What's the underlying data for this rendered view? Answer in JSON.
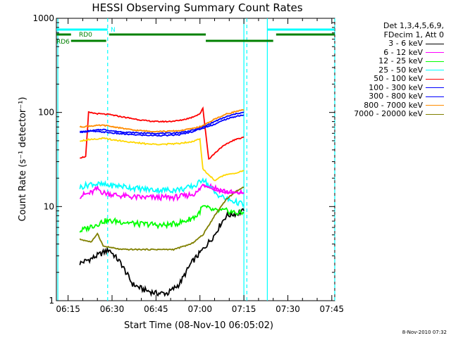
{
  "chart_data": {
    "type": "line",
    "title": "HESSI Observing Summary Count Rates",
    "xlabel": "Start Time (08-Nov-10 06:05:02)",
    "ylabel": "Count Rate (s⁻¹ detector⁻¹)",
    "yscale": "log",
    "ylim": [
      1,
      1000
    ],
    "xlim_minutes": [
      6.0,
      101.0
    ],
    "x_ticks": [
      {
        "min": 10,
        "label": "06:15"
      },
      {
        "min": 25,
        "label": "06:30"
      },
      {
        "min": 40,
        "label": "06:45"
      },
      {
        "min": 55,
        "label": "07:00"
      },
      {
        "min": 70,
        "label": "07:15"
      },
      {
        "min": 85,
        "label": "07:30"
      },
      {
        "min": 100,
        "label": "07:45"
      }
    ],
    "y_ticks": [
      {
        "value": 1,
        "label": "1"
      },
      {
        "value": 10,
        "label": "10"
      },
      {
        "value": 100,
        "label": "100"
      },
      {
        "value": 1000,
        "label": "1000"
      }
    ],
    "legend_header": [
      "Det 1,3,4,5,6,9,",
      "FDecim 1, Att 0"
    ],
    "series": [
      {
        "name": "3 - 6 keV",
        "color": "#000000",
        "points": [
          [
            14,
            2.5
          ],
          [
            18,
            2.8
          ],
          [
            24,
            3.5
          ],
          [
            28,
            2.5
          ],
          [
            32,
            1.5
          ],
          [
            36,
            1.3
          ],
          [
            40,
            1.2
          ],
          [
            44,
            1.2
          ],
          [
            48,
            1.5
          ],
          [
            52,
            2.5
          ],
          [
            56,
            3.5
          ],
          [
            60,
            5
          ],
          [
            62,
            6.5
          ],
          [
            64,
            8
          ],
          [
            68,
            8.5
          ],
          [
            70,
            9
          ]
        ]
      },
      {
        "name": "6 - 12 keV",
        "color": "#ff00ff",
        "points": [
          [
            14,
            13
          ],
          [
            18,
            14
          ],
          [
            20,
            15.5
          ],
          [
            22,
            14
          ],
          [
            28,
            13
          ],
          [
            34,
            12.5
          ],
          [
            40,
            12.5
          ],
          [
            46,
            12.5
          ],
          [
            50,
            13
          ],
          [
            54,
            14
          ],
          [
            56,
            17
          ],
          [
            58,
            17
          ],
          [
            62,
            15
          ],
          [
            66,
            14
          ],
          [
            70,
            14
          ]
        ]
      },
      {
        "name": "12 - 25 keV",
        "color": "#00ff00",
        "points": [
          [
            14,
            5.5
          ],
          [
            16,
            5.8
          ],
          [
            18,
            6.2
          ],
          [
            20,
            6.5
          ],
          [
            22,
            7
          ],
          [
            26,
            7
          ],
          [
            30,
            6.8
          ],
          [
            34,
            6.5
          ],
          [
            38,
            6.5
          ],
          [
            42,
            6.3
          ],
          [
            46,
            6.5
          ],
          [
            50,
            7
          ],
          [
            54,
            8
          ],
          [
            56,
            10
          ],
          [
            60,
            9
          ],
          [
            64,
            9
          ],
          [
            68,
            8.5
          ],
          [
            70,
            8.5
          ]
        ]
      },
      {
        "name": "25 - 50 keV",
        "color": "#00ffff",
        "points": [
          [
            14,
            16
          ],
          [
            18,
            17.5
          ],
          [
            22,
            17
          ],
          [
            28,
            16.5
          ],
          [
            34,
            15.5
          ],
          [
            40,
            15
          ],
          [
            46,
            15
          ],
          [
            50,
            15.5
          ],
          [
            54,
            17
          ],
          [
            56,
            20
          ],
          [
            60,
            14
          ],
          [
            64,
            12
          ],
          [
            68,
            11
          ],
          [
            70,
            10.5
          ]
        ]
      },
      {
        "name": "50 - 100 keV",
        "color": "#ff0000",
        "points": [
          [
            14,
            33
          ],
          [
            16,
            34
          ],
          [
            17,
            100
          ],
          [
            20,
            97
          ],
          [
            24,
            95
          ],
          [
            30,
            88
          ],
          [
            36,
            82
          ],
          [
            40,
            80
          ],
          [
            44,
            80
          ],
          [
            48,
            82
          ],
          [
            52,
            88
          ],
          [
            55,
            97
          ],
          [
            56,
            110
          ],
          [
            58,
            32
          ],
          [
            62,
            42
          ],
          [
            66,
            50
          ],
          [
            70,
            55
          ]
        ]
      },
      {
        "name": "100 - 300 keV",
        "color": "#0000ff",
        "points": [
          [
            14,
            62
          ],
          [
            18,
            63
          ],
          [
            22,
            62
          ],
          [
            26,
            60
          ],
          [
            32,
            58
          ],
          [
            38,
            57
          ],
          [
            44,
            57
          ],
          [
            48,
            58
          ],
          [
            52,
            62
          ],
          [
            56,
            68
          ],
          [
            60,
            75
          ],
          [
            64,
            85
          ],
          [
            68,
            92
          ],
          [
            70,
            94
          ]
        ]
      },
      {
        "name": "300 - 800 keV",
        "color": "#0000ff",
        "points": [
          [
            14,
            62
          ],
          [
            18,
            64
          ],
          [
            22,
            66
          ],
          [
            26,
            63
          ],
          [
            32,
            61
          ],
          [
            38,
            60
          ],
          [
            44,
            60
          ],
          [
            48,
            61
          ],
          [
            52,
            64
          ],
          [
            56,
            70
          ],
          [
            60,
            80
          ],
          [
            64,
            90
          ],
          [
            68,
            98
          ],
          [
            70,
            100
          ]
        ]
      },
      {
        "name": "800 - 7000 keV",
        "color": "#ff8c00",
        "points": [
          [
            14,
            70
          ],
          [
            18,
            72
          ],
          [
            22,
            73
          ],
          [
            26,
            70
          ],
          [
            32,
            65
          ],
          [
            38,
            63
          ],
          [
            44,
            63
          ],
          [
            48,
            64
          ],
          [
            52,
            67
          ],
          [
            56,
            72
          ],
          [
            60,
            85
          ],
          [
            64,
            96
          ],
          [
            68,
            104
          ],
          [
            70,
            106
          ]
        ]
      },
      {
        "name": "7000 - 20000 keV",
        "color": "#808000",
        "points": [
          [
            14,
            4.5
          ],
          [
            18,
            4.2
          ],
          [
            20,
            5.2
          ],
          [
            22,
            3.8
          ],
          [
            28,
            3.5
          ],
          [
            34,
            3.5
          ],
          [
            40,
            3.5
          ],
          [
            46,
            3.5
          ],
          [
            52,
            4
          ],
          [
            56,
            5
          ],
          [
            60,
            8
          ],
          [
            64,
            12
          ],
          [
            68,
            15
          ],
          [
            70,
            16
          ]
        ]
      }
    ],
    "extra_curves": [
      {
        "name": "50 - 100 keV upper branch",
        "color": "#ffd700",
        "points": [
          [
            14,
            50
          ],
          [
            18,
            52
          ],
          [
            22,
            53
          ],
          [
            26,
            51
          ],
          [
            32,
            48
          ],
          [
            38,
            46
          ],
          [
            44,
            46
          ],
          [
            48,
            47
          ],
          [
            52,
            49
          ],
          [
            55,
            52
          ],
          [
            56,
            25
          ],
          [
            60,
            19
          ],
          [
            64,
            22
          ],
          [
            68,
            23
          ],
          [
            70,
            24
          ]
        ]
      },
      {
        "name": "lower magenta",
        "color": "#ff00ff",
        "points": [
          [
            56,
            17
          ],
          [
            60,
            15
          ],
          [
            64,
            14
          ],
          [
            68,
            14
          ],
          [
            70,
            14
          ]
        ]
      }
    ],
    "shaded_intervals": [
      {
        "label": "N",
        "start_min": 6.0,
        "end_min": 23.5
      },
      {
        "label": "",
        "start_min": 78.0,
        "end_min": 101.0
      }
    ],
    "dashed_markers_min": [
      23.5,
      71.0,
      101.0
    ],
    "solid_markers_min": [
      6.5,
      70.0,
      78.0
    ],
    "top_bars": [
      {
        "label": "N",
        "color": "#00ffff",
        "y_level": "top",
        "segments": [
          [
            6.0,
            23.5
          ],
          [
            78.0,
            101.0
          ]
        ]
      },
      {
        "label": "RD0",
        "color": "#008000",
        "y_level": "middle",
        "segments": [
          [
            6.0,
            11.0
          ],
          [
            24.0,
            57.0
          ],
          [
            81.0,
            101.0
          ]
        ]
      },
      {
        "label": "RD6",
        "color": "#008000",
        "y_level": "lower",
        "segments": [
          [
            11.0,
            23.0
          ],
          [
            57.0,
            80.0
          ]
        ]
      }
    ]
  },
  "footer_timestamp": "8-Nov-2010 07:32"
}
